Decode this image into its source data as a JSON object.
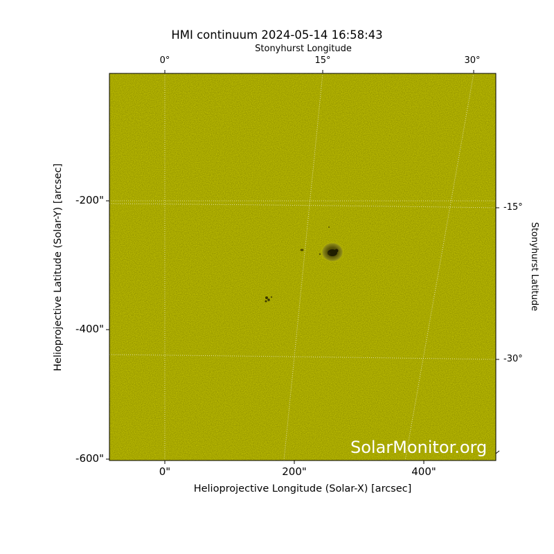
{
  "figure": {
    "title": "HMI continuum 2024-05-14 16:58:43",
    "top_axis_label": "Stonyhurst Longitude",
    "right_axis_label": "Stonyhurst Latitude",
    "left_axis_label": "Helioprojective Latitude (Solar-Y) [arcsec]",
    "bottom_axis_label": "Helioprojective Longitude (Solar-X) [arcsec]",
    "watermark": "SolarMonitor.org",
    "colors": {
      "disk": "#cccc00",
      "spot_dark": "#2a2800",
      "penumbra": "#7d7a10",
      "grid": "#ffffff"
    }
  },
  "axes": {
    "x_ticks": [
      "0\"",
      "200\"",
      "400\""
    ],
    "y_ticks": [
      "-200\"",
      "-400\"",
      "-600\""
    ],
    "lon_ticks": [
      "0°",
      "15°",
      "30°"
    ],
    "lat_ticks": [
      "-15°",
      "-30°"
    ]
  },
  "features": {
    "main_spot": {
      "solar_x": 262,
      "solar_y": -282
    },
    "small_spots": [
      {
        "solar_x": 160,
        "solar_y": -355
      },
      {
        "solar_x": 213,
        "solar_y": -275
      }
    ]
  }
}
